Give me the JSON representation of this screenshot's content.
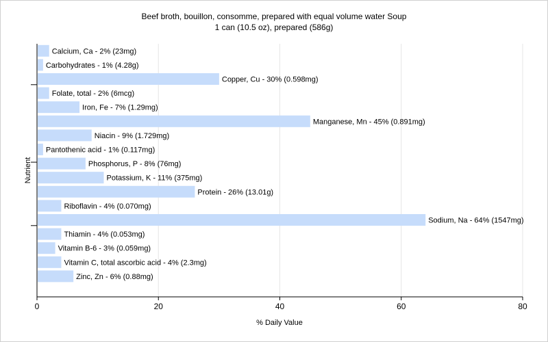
{
  "chart_data": {
    "type": "bar",
    "orientation": "horizontal",
    "title": "Beef broth, bouillon, consomme, prepared with equal volume water Soup",
    "subtitle": "1 can (10.5 oz), prepared (586g)",
    "xlabel": "% Daily Value",
    "ylabel": "Nutrient",
    "xlim": [
      0,
      80
    ],
    "xticks": [
      0,
      20,
      40,
      60,
      80
    ],
    "grid": true,
    "bar_color": "#c6dcfb",
    "categories": [
      "Calcium, Ca",
      "Carbohydrates",
      "Copper, Cu",
      "Folate, total",
      "Iron, Fe",
      "Manganese, Mn",
      "Niacin",
      "Pantothenic acid",
      "Phosphorus, P",
      "Potassium, K",
      "Protein",
      "Riboflavin",
      "Sodium, Na",
      "Thiamin",
      "Vitamin B-6",
      "Vitamin C, total ascorbic acid",
      "Zinc, Zn"
    ],
    "values": [
      2,
      1,
      30,
      2,
      7,
      45,
      9,
      1,
      8,
      11,
      26,
      4,
      64,
      4,
      3,
      4,
      6
    ],
    "labels": [
      "Calcium, Ca - 2% (23mg)",
      "Carbohydrates - 1% (4.28g)",
      "Copper, Cu - 30% (0.598mg)",
      "Folate, total - 2% (6mcg)",
      "Iron, Fe - 7% (1.29mg)",
      "Manganese, Mn - 45% (0.891mg)",
      "Niacin - 9% (1.729mg)",
      "Pantothenic acid - 1% (0.117mg)",
      "Phosphorus, P - 8% (76mg)",
      "Potassium, K - 11% (375mg)",
      "Protein - 26% (13.01g)",
      "Riboflavin - 4% (0.070mg)",
      "Sodium, Na - 64% (1547mg)",
      "Thiamin - 4% (0.053mg)",
      "Vitamin B-6 - 3% (0.059mg)",
      "Vitamin C, total ascorbic acid - 4% (2.3mg)",
      "Zinc, Zn - 6% (0.88mg)"
    ]
  }
}
